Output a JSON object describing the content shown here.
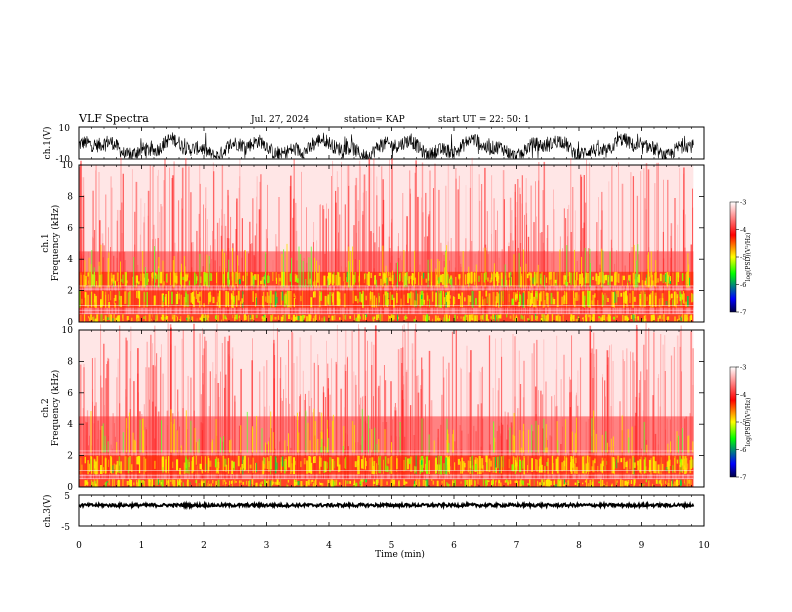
{
  "header": {
    "title": "VLF Spectra",
    "date": "Jul. 27, 2024",
    "station": "station= KAP",
    "start": "start UT =  22: 50: 1"
  },
  "chart_data": [
    {
      "type": "line",
      "name": "ch1-waveform",
      "ylabel": "ch.1(V)",
      "ylim": [
        -10,
        10
      ],
      "yticks": [
        "10",
        "-10"
      ],
      "xlim": [
        0,
        10
      ],
      "data_end": 9.83,
      "color": "#000000"
    },
    {
      "type": "heatmap",
      "name": "ch1-spectrogram",
      "ylabel": "ch.1\nFrequency (kHz)",
      "ylim": [
        0,
        10
      ],
      "yticks": [
        "0",
        "2",
        "4",
        "6",
        "8",
        "10"
      ],
      "xlim": [
        0,
        10
      ],
      "data_end": 9.83,
      "colorbar": {
        "label": "log(PSD)(V²/Hz)",
        "ticks": [
          "-3",
          "-4",
          "-5",
          "-6",
          "-7"
        ],
        "range": [
          -7,
          -3
        ],
        "colors": [
          "#000044",
          "#0000ff",
          "#00ff00",
          "#ffff00",
          "#ff0000",
          "#ffffff"
        ]
      },
      "bands_khz": [
        [
          0.0,
          0.5
        ],
        [
          0.9,
          2.0
        ],
        [
          2.3,
          3.2
        ]
      ]
    },
    {
      "type": "heatmap",
      "name": "ch2-spectrogram",
      "ylabel": "ch.2\nFrequency (kHz)",
      "ylim": [
        0,
        10
      ],
      "yticks": [
        "0",
        "2",
        "4",
        "6",
        "8",
        "10"
      ],
      "xlim": [
        0,
        10
      ],
      "data_end": 9.83,
      "colorbar": {
        "label": "log(PSD)(V²/Hz)",
        "ticks": [
          "-3",
          "-4",
          "-5",
          "-6",
          "-7"
        ],
        "range": [
          -7,
          -3
        ],
        "colors": [
          "#000044",
          "#0000ff",
          "#00ff00",
          "#ffff00",
          "#ff0000",
          "#ffffff"
        ]
      },
      "bands_khz": [
        [
          0.0,
          0.5
        ],
        [
          0.8,
          2.0
        ]
      ]
    },
    {
      "type": "line",
      "name": "ch3-waveform",
      "ylabel": "ch.3(V)",
      "ylim": [
        -5,
        5
      ],
      "yticks": [
        "5",
        "-5"
      ],
      "xlim": [
        0,
        10
      ],
      "data_end": 9.83,
      "level": 1.7,
      "color": "#000000"
    }
  ],
  "xaxis": {
    "label": "Time (min)",
    "ticks": [
      "0",
      "1",
      "2",
      "3",
      "4",
      "5",
      "6",
      "7",
      "8",
      "9",
      "10"
    ]
  }
}
